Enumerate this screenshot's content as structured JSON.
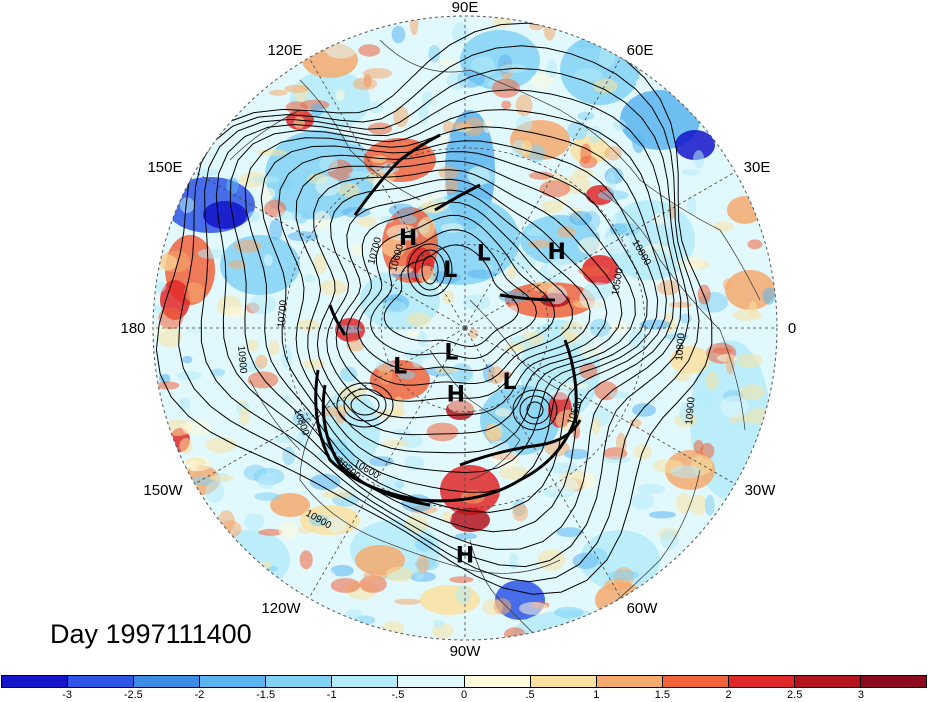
{
  "day_label": "Day 1997111400",
  "longitude_labels": [
    "90E",
    "60E",
    "30E",
    "0",
    "30W",
    "60W",
    "90W",
    "120W",
    "150W",
    "180",
    "150E",
    "120E"
  ],
  "pressure_centers": [
    {
      "type": "L",
      "lat": 62,
      "lon": 76
    },
    {
      "type": "H",
      "lat": 52,
      "lon": 122
    },
    {
      "type": "H",
      "lat": 48,
      "lon": 40
    },
    {
      "type": "L",
      "lat": 68,
      "lon": 104
    },
    {
      "type": "L",
      "lat": 80,
      "lon": -120
    },
    {
      "type": "L",
      "lat": 63,
      "lon": -150
    },
    {
      "type": "H",
      "lat": 66,
      "lon": -98
    },
    {
      "type": "L",
      "lat": 65,
      "lon": -50
    },
    {
      "type": "H",
      "lat": 18,
      "lon": -90
    }
  ],
  "contour_labels": [
    "10800",
    "10500",
    "10800",
    "10900",
    "10900",
    "10700",
    "10800",
    "10700",
    "10600",
    "10700",
    "10500",
    "10600",
    "10900"
  ],
  "colorbar": {
    "ticks": [
      "-3",
      "-2.5",
      "-2",
      "-1.5",
      "-1",
      "-.5",
      "0",
      ".5",
      "1",
      "1.5",
      "2",
      "2.5",
      "3"
    ],
    "colors": [
      "#1414c8",
      "#2d55e6",
      "#3c8ce6",
      "#5ab4f0",
      "#82d2f5",
      "#b4ebfa",
      "#e1f8fc",
      "#fffadc",
      "#fae1a0",
      "#f5aa6e",
      "#f0643c",
      "#e12828",
      "#b4141e",
      "#8c0a1e"
    ]
  }
}
